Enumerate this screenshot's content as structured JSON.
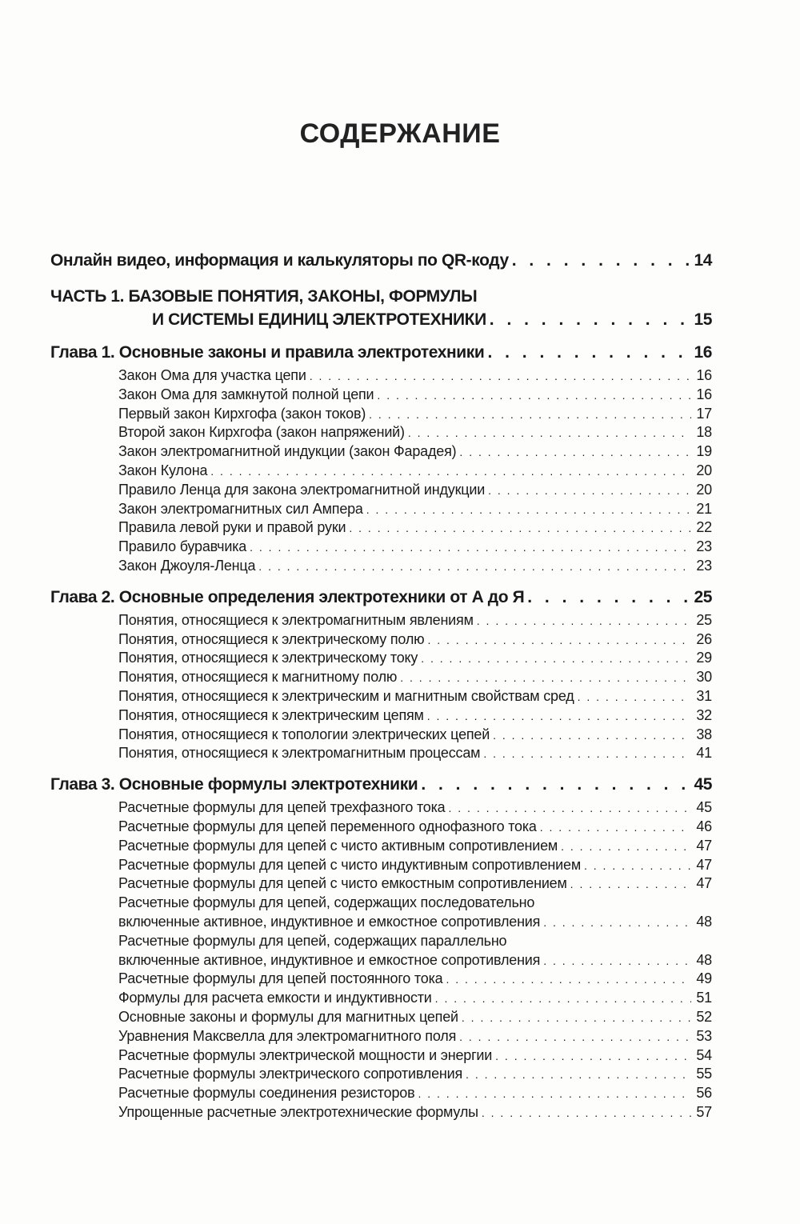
{
  "title": "СОДЕРЖАНИЕ",
  "intro": {
    "text": "Онлайн видео, информация и калькуляторы по QR-коду",
    "page": "14"
  },
  "part": {
    "line1": "ЧАСТЬ 1. БАЗОВЫЕ ПОНЯТИЯ, ЗАКОНЫ, ФОРМУЛЫ",
    "line2": "И СИСТЕМЫ ЕДИНИЦ ЭЛЕКТРОТЕХНИКИ",
    "page": "15"
  },
  "chapters": [
    {
      "title": "Глава 1. Основные законы и правила электротехники",
      "page": "16",
      "items": [
        {
          "lines": [
            "Закон Ома для участка цепи"
          ],
          "page": "16"
        },
        {
          "lines": [
            "Закон Ома для замкнутой полной цепи"
          ],
          "page": "16"
        },
        {
          "lines": [
            "Первый закон Кирхгофа (закон токов)"
          ],
          "page": "17"
        },
        {
          "lines": [
            "Второй закон Кирхгофа (закон напряжений)"
          ],
          "page": "18"
        },
        {
          "lines": [
            "Закон электромагнитной индукции (закон Фарадея)"
          ],
          "page": "19"
        },
        {
          "lines": [
            "Закон Кулона"
          ],
          "page": "20"
        },
        {
          "lines": [
            "Правило Ленца для закона электромагнитной индукции"
          ],
          "page": "20"
        },
        {
          "lines": [
            "Закон электромагнитных сил Ампера"
          ],
          "page": "21"
        },
        {
          "lines": [
            "Правила левой руки и правой руки"
          ],
          "page": "22"
        },
        {
          "lines": [
            "Правило буравчика"
          ],
          "page": "23"
        },
        {
          "lines": [
            "Закон Джоуля-Ленца"
          ],
          "page": "23"
        }
      ]
    },
    {
      "title": "Глава 2. Основные определения электротехники от А до Я",
      "page": "25",
      "items": [
        {
          "lines": [
            "Понятия, относящиеся к электромагнитным явлениям"
          ],
          "page": "25"
        },
        {
          "lines": [
            "Понятия, относящиеся к электрическому полю"
          ],
          "page": "26"
        },
        {
          "lines": [
            "Понятия, относящиеся к электрическому току"
          ],
          "page": "29"
        },
        {
          "lines": [
            "Понятия, относящиеся к магнитному полю"
          ],
          "page": "30"
        },
        {
          "lines": [
            "Понятия, относящиеся к электрическим и магнитным свойствам сред"
          ],
          "page": "31"
        },
        {
          "lines": [
            "Понятия, относящиеся к электрическим цепям"
          ],
          "page": "32"
        },
        {
          "lines": [
            "Понятия, относящиеся к топологии электрических цепей"
          ],
          "page": "38"
        },
        {
          "lines": [
            "Понятия, относящиеся к электромагнитным процессам"
          ],
          "page": "41"
        }
      ]
    },
    {
      "title": "Глава 3. Основные формулы электротехники",
      "page": "45",
      "items": [
        {
          "lines": [
            "Расчетные формулы для цепей трехфазного тока"
          ],
          "page": "45"
        },
        {
          "lines": [
            "Расчетные формулы для цепей переменного однофазного тока"
          ],
          "page": "46"
        },
        {
          "lines": [
            "Расчетные формулы для цепей с чисто активным сопротивлением"
          ],
          "page": "47"
        },
        {
          "lines": [
            "Расчетные формулы для цепей с чисто индуктивным сопротивлением"
          ],
          "page": "47"
        },
        {
          "lines": [
            "Расчетные формулы для цепей с чисто емкостным сопротивлением"
          ],
          "page": "47"
        },
        {
          "lines": [
            "Расчетные формулы для цепей, содержащих последовательно",
            "включенные активное, индуктивное и емкостное сопротивления"
          ],
          "page": "48"
        },
        {
          "lines": [
            "Расчетные формулы для цепей, содержащих параллельно",
            "включенные активное, индуктивное и емкостное сопротивления"
          ],
          "page": "48"
        },
        {
          "lines": [
            "Расчетные формулы для цепей постоянного тока"
          ],
          "page": "49"
        },
        {
          "lines": [
            "Формулы для расчета емкости и индуктивности"
          ],
          "page": "51"
        },
        {
          "lines": [
            "Основные законы и формулы для магнитных цепей"
          ],
          "page": "52"
        },
        {
          "lines": [
            "Уравнения Максвелла для электромагнитного поля"
          ],
          "page": "53"
        },
        {
          "lines": [
            "Расчетные формулы электрической мощности и энергии"
          ],
          "page": "54"
        },
        {
          "lines": [
            "Расчетные формулы электрического сопротивления"
          ],
          "page": "55"
        },
        {
          "lines": [
            "Расчетные формулы соединения резисторов"
          ],
          "page": "56"
        },
        {
          "lines": [
            "Упрощенные расчетные электротехнические формулы"
          ],
          "page": "57"
        }
      ]
    }
  ]
}
